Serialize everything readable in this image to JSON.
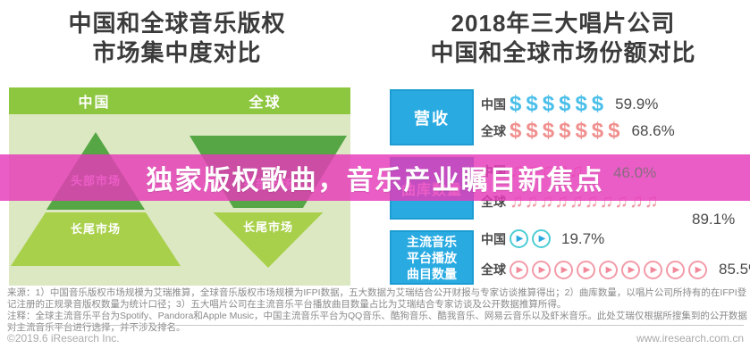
{
  "banner": {
    "text": "独家版权歌曲，音乐产业瞩目新焦点"
  },
  "left_chart": {
    "title_lines": [
      "中国和全球音乐版权",
      "市场集中度对比"
    ],
    "header": {
      "china": "中国",
      "global": "全球"
    },
    "china_pyramid": {
      "top_label": "头部市场",
      "bottom_label": "长尾市场"
    },
    "global_pyramid": {
      "top_label": "头部市场",
      "bottom_label": "长尾市场"
    }
  },
  "right_chart": {
    "title_lines": [
      "2018年三大唱片公司",
      "中国和全球市场份额对比"
    ],
    "rows": [
      {
        "category": "营收",
        "icon": "dollar-icon",
        "china": {
          "label": "中国",
          "count": 6,
          "value": "59.9%"
        },
        "global": {
          "label": "全球",
          "count": 7,
          "value": "68.6%"
        }
      },
      {
        "category": "曲库数量",
        "icon": "music-note-icon",
        "china": {
          "label": "中国",
          "count": 5,
          "value": "46.0%"
        },
        "global": {
          "label": "全球",
          "count": 10,
          "value": "89.1%"
        }
      },
      {
        "category_lines": [
          "主流音乐",
          "平台播放",
          "曲目数量"
        ],
        "category": "主流音乐平台播放曲目数量",
        "icon": "play-icon",
        "china": {
          "label": "中国",
          "count": 2,
          "value": "19.7%"
        },
        "global": {
          "label": "全球",
          "count": 9,
          "value": "85.5%"
        }
      }
    ]
  },
  "chart_data": [
    {
      "type": "pyramid",
      "title": "中国和全球音乐版权市场集中度对比",
      "series": [
        {
          "name": "中国",
          "shape": "pyramid",
          "segments": [
            "头部市场(小)",
            "长尾市场(大)"
          ]
        },
        {
          "name": "全球",
          "shape": "inverted-pyramid",
          "segments": [
            "头部市场(大)",
            "长尾市场(小)"
          ]
        }
      ]
    },
    {
      "type": "bar",
      "title": "2018年三大唱片公司中国和全球市场份额对比",
      "categories": [
        "营收",
        "曲库数量",
        "主流音乐平台播放曲目数量"
      ],
      "series": [
        {
          "name": "中国",
          "values": [
            59.9,
            46.0,
            19.7
          ]
        },
        {
          "name": "全球",
          "values": [
            68.6,
            89.1,
            85.5
          ]
        }
      ],
      "unit": "%",
      "ylim": [
        0,
        100
      ],
      "legend_position": "row-labels"
    }
  ],
  "colors": {
    "banner_pink": "#e739ba",
    "header_green": "#8dc63f",
    "panel_green": "#dce8c2",
    "pyramid_dark_green": "#56a645",
    "pyramid_light_green": "#a9d04b",
    "category_blue": "#29abe2",
    "china_icon_blue": "#4bbfe9",
    "global_icon_pink": "#f0908f"
  },
  "icons": {
    "dollar": "$",
    "music_note": "♫",
    "play": "▶"
  },
  "notes": {
    "lines": [
      "来源：1）中国音乐版权市场规模为艾瑞推算，全球音乐版权市场规模为IFPI数据，五大数据为艾瑞结合公开财报与专家访谈推算得出；2）曲库数量，以唱片公司所持有的在IFPI登",
      "记注册的正规录音版权数量为统计口径；3）五大唱片公司在主流音乐平台播放曲目数量占比为艾瑞结合专家访谈及公开数据推算所得。",
      "注释：全球主流音乐平台为Spotify、Pandora和Apple Music，中国主流音乐平台为QQ音乐、酷狗音乐、酷我音乐、网易云音乐以及虾米音乐。此处艾瑞仅根据所搜集到的公开数据",
      "对主流音乐平台进行选择，并不涉及排名。"
    ]
  },
  "footer": {
    "copyright": "©2019.6 iResearch Inc.",
    "website": "www.iresearch.com.cn"
  }
}
